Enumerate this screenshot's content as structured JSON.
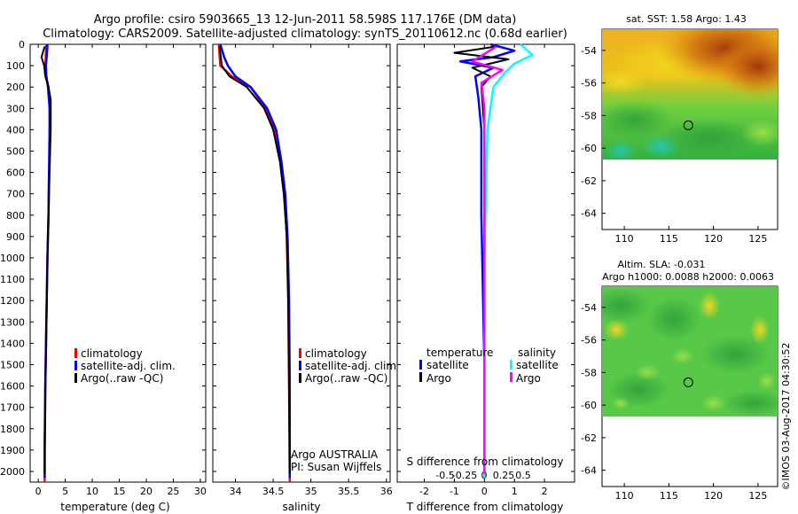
{
  "header": {
    "line1": "Argo profile: csiro 5903665_13 12-Jun-2011 58.598S 117.176E (DM data)",
    "line2": "Climatology: CARS2009. Satellite-adjusted climatology: synTS_20110612.nc (0.68d earlier)"
  },
  "colors": {
    "clim": "#ff0000",
    "sat": "#0000ff",
    "argo": "#000000",
    "sal_sat": "#00ffff",
    "sal_argo": "#ff00ff"
  },
  "chart_data": [
    {
      "type": "line",
      "id": "temperature",
      "xlabel": "temperature (deg C)",
      "xlim": [
        -1.5,
        31
      ],
      "xticks": [
        0,
        5,
        10,
        15,
        20,
        25,
        30
      ],
      "xticklabels": [
        "0",
        "5",
        "10",
        "15",
        "20",
        "25",
        "30"
      ],
      "ylim": [
        0,
        2050
      ],
      "yticks": [
        0,
        100,
        200,
        300,
        400,
        500,
        600,
        700,
        800,
        900,
        1000,
        1100,
        1200,
        1300,
        1400,
        1500,
        1600,
        1700,
        1800,
        1900,
        2000
      ],
      "legend": [
        "climatology",
        "satellite-adj. clim.",
        "Argo(..raw -QC)"
      ],
      "series": [
        {
          "name": "climatology",
          "color_key": "clim",
          "points": [
            [
              1.5,
              0
            ],
            [
              1.4,
              50
            ],
            [
              1.3,
              100
            ],
            [
              1.4,
              150
            ],
            [
              1.9,
              200
            ],
            [
              2.2,
              300
            ],
            [
              2.2,
              400
            ],
            [
              2.0,
              600
            ],
            [
              1.9,
              800
            ],
            [
              1.7,
              1000
            ],
            [
              1.5,
              1300
            ],
            [
              1.3,
              1600
            ],
            [
              1.2,
              1900
            ],
            [
              1.2,
              2050
            ]
          ]
        },
        {
          "name": "satellite-adj. clim.",
          "color_key": "sat",
          "points": [
            [
              1.7,
              0
            ],
            [
              1.6,
              50
            ],
            [
              1.4,
              100
            ],
            [
              1.5,
              150
            ],
            [
              1.8,
              200
            ],
            [
              2.1,
              300
            ],
            [
              2.1,
              400
            ],
            [
              2.0,
              600
            ],
            [
              1.9,
              800
            ],
            [
              1.7,
              1000
            ],
            [
              1.5,
              1300
            ],
            [
              1.3,
              1600
            ],
            [
              1.2,
              1900
            ],
            [
              1.2,
              2030
            ]
          ]
        },
        {
          "name": "Argo(..raw -QC)",
          "color_key": "argo",
          "points": [
            [
              1.2,
              10
            ],
            [
              0.6,
              60
            ],
            [
              1.1,
              100
            ],
            [
              1.3,
              150
            ],
            [
              1.9,
              200
            ],
            [
              2.3,
              260
            ],
            [
              2.3,
              400
            ],
            [
              2.1,
              600
            ],
            [
              1.9,
              800
            ],
            [
              1.7,
              1000
            ],
            [
              1.5,
              1300
            ],
            [
              1.3,
              1600
            ],
            [
              1.2,
              1900
            ],
            [
              1.2,
              2010
            ]
          ]
        }
      ]
    },
    {
      "type": "line",
      "id": "salinity",
      "xlabel": "salinity",
      "xlim": [
        33.7,
        36.05
      ],
      "xticks": [
        34,
        34.5,
        35,
        35.5,
        36
      ],
      "xticklabels": [
        "34",
        "34.5",
        "35",
        "35.5",
        "36"
      ],
      "ylim": [
        0,
        2050
      ],
      "legend": [
        "climatology",
        "satellite-adj. clim.",
        "Argo(..raw -QC)"
      ],
      "annotations": [
        "Argo AUSTRALIA",
        "PI: Susan Wijffels"
      ],
      "series": [
        {
          "name": "climatology",
          "color_key": "clim",
          "points": [
            [
              33.78,
              0
            ],
            [
              33.8,
              100
            ],
            [
              33.95,
              150
            ],
            [
              34.2,
              200
            ],
            [
              34.4,
              300
            ],
            [
              34.52,
              400
            ],
            [
              34.6,
              550
            ],
            [
              34.65,
              700
            ],
            [
              34.68,
              900
            ],
            [
              34.7,
              1200
            ],
            [
              34.71,
              1600
            ],
            [
              34.72,
              2050
            ]
          ]
        },
        {
          "name": "satellite-adj. clim.",
          "color_key": "sat",
          "points": [
            [
              33.8,
              0
            ],
            [
              33.85,
              60
            ],
            [
              33.9,
              100
            ],
            [
              34.0,
              150
            ],
            [
              34.2,
              200
            ],
            [
              34.42,
              300
            ],
            [
              34.54,
              400
            ],
            [
              34.61,
              550
            ],
            [
              34.66,
              700
            ],
            [
              34.69,
              900
            ],
            [
              34.71,
              1200
            ],
            [
              34.72,
              1600
            ],
            [
              34.72,
              2030
            ]
          ]
        },
        {
          "name": "Argo(..raw -QC)",
          "color_key": "argo",
          "points": [
            [
              33.79,
              10
            ],
            [
              33.82,
              100
            ],
            [
              33.92,
              150
            ],
            [
              34.15,
              200
            ],
            [
              34.38,
              300
            ],
            [
              34.5,
              400
            ],
            [
              34.59,
              550
            ],
            [
              34.64,
              700
            ],
            [
              34.68,
              900
            ],
            [
              34.7,
              1200
            ],
            [
              34.71,
              1600
            ],
            [
              34.72,
              2010
            ]
          ]
        }
      ]
    },
    {
      "type": "line",
      "id": "differences",
      "xlabel": "T difference from climatology",
      "xlabel_top": "S difference from climatology",
      "xlim": [
        -2.9,
        3.0
      ],
      "xticks": [
        -2,
        -1,
        0,
        1,
        2
      ],
      "xticklabels": [
        "-2",
        "-1",
        "0",
        "1",
        "2"
      ],
      "s_xticks": [
        -0.5,
        -0.25,
        0,
        0.25,
        0.5
      ],
      "s_xticklabels": [
        "-0.5",
        "-0.25",
        "0",
        "0.25",
        "0.5"
      ],
      "ylim": [
        0,
        2050
      ],
      "legend_t_title": "temperature",
      "legend_s_title": "salinity",
      "legend_entries": [
        "satellite",
        "Argo",
        "satellite",
        "Argo"
      ],
      "series": [
        {
          "name": "T satellite",
          "color_key": "sat",
          "points": [
            [
              0.2,
              0
            ],
            [
              1.0,
              30
            ],
            [
              0.3,
              60
            ],
            [
              -0.8,
              80
            ],
            [
              0.3,
              110
            ],
            [
              -0.3,
              150
            ],
            [
              -0.2,
              250
            ],
            [
              -0.1,
              400
            ],
            [
              -0.1,
              800
            ],
            [
              0,
              1500
            ],
            [
              0,
              2030
            ]
          ]
        },
        {
          "name": "T Argo",
          "color_key": "argo",
          "points": [
            [
              0.4,
              10
            ],
            [
              -1.0,
              40
            ],
            [
              0.8,
              70
            ],
            [
              -0.4,
              110
            ],
            [
              0.2,
              150
            ],
            [
              -0.1,
              200
            ],
            [
              0,
              400
            ],
            [
              0,
              1000
            ],
            [
              0,
              2010
            ]
          ]
        },
        {
          "name": "S satellite",
          "color_key": "sal_sat",
          "points": [
            [
              1.2,
              0
            ],
            [
              1.6,
              50
            ],
            [
              1.0,
              90
            ],
            [
              0.7,
              130
            ],
            [
              0.3,
              200
            ],
            [
              0.1,
              400
            ],
            [
              0,
              1000
            ],
            [
              0,
              2030
            ]
          ]
        },
        {
          "name": "S Argo",
          "color_key": "sal_argo",
          "points": [
            [
              0.4,
              10
            ],
            [
              -0.4,
              80
            ],
            [
              0.6,
              120
            ],
            [
              -0.1,
              180
            ],
            [
              0,
              300
            ],
            [
              0,
              2010
            ]
          ]
        }
      ]
    },
    {
      "type": "heatmap",
      "id": "sst_map",
      "title": "sat. SST: 1.58 Argo: 1.43",
      "xlim": [
        107.5,
        127.2
      ],
      "ylim": [
        -65,
        -52.7
      ],
      "xticks": [
        110,
        115,
        120,
        125
      ],
      "xticklabels": [
        "110",
        "115",
        "120",
        "125"
      ],
      "yticks": [
        -54,
        -56,
        -58,
        -60,
        -62,
        -64
      ],
      "yticklabels": [
        "-54",
        "-56",
        "-58",
        "-60",
        "-62",
        "-64"
      ],
      "data_bottom_lat": -60,
      "marker": {
        "lon": 117.176,
        "lat": -58.598
      }
    },
    {
      "type": "heatmap",
      "id": "sla_map",
      "title": "Altim. SLA: -0.031",
      "subtitle": "Argo h1000: 0.0088 h2000: 0.0063",
      "xlim": [
        107.5,
        127.2
      ],
      "ylim": [
        -65,
        -52.7
      ],
      "xticks": [
        110,
        115,
        120,
        125
      ],
      "xticklabels": [
        "110",
        "115",
        "120",
        "125"
      ],
      "yticks": [
        -54,
        -56,
        -58,
        -60,
        -62,
        -64
      ],
      "yticklabels": [
        "-54",
        "-56",
        "-58",
        "-60",
        "-62",
        "-64"
      ],
      "data_bottom_lat": -60,
      "marker": {
        "lon": 117.176,
        "lat": -58.598
      }
    }
  ],
  "footer": {
    "credit": "©IMOS 03-Aug-2017 04:30:52"
  }
}
